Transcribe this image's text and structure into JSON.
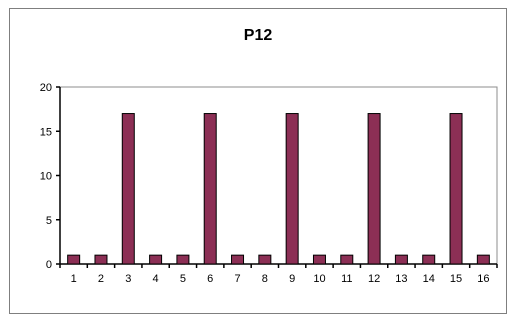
{
  "chart_data": {
    "type": "bar",
    "title": "P12",
    "categories": [
      "1",
      "2",
      "3",
      "4",
      "5",
      "6",
      "7",
      "8",
      "9",
      "10",
      "11",
      "12",
      "13",
      "14",
      "15",
      "16"
    ],
    "values": [
      1,
      1,
      17,
      1,
      1,
      17,
      1,
      1,
      17,
      1,
      1,
      17,
      1,
      1,
      17,
      1
    ],
    "xlabel": "",
    "ylabel": "",
    "ylim": [
      0,
      20
    ],
    "yticks": [
      0,
      5,
      10,
      15,
      20
    ],
    "grid": false,
    "legend": "none",
    "colors": {
      "bar": "#8c2f55",
      "bar_edge": "#000000",
      "axis": "#000000",
      "plot_border": "#8c8c8c"
    }
  }
}
